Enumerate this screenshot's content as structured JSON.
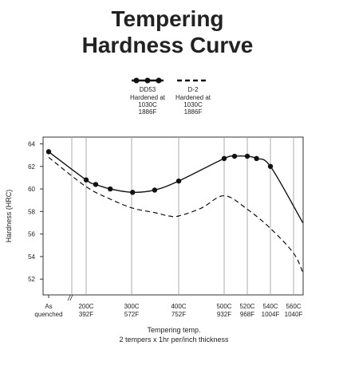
{
  "chart_data": {
    "type": "line",
    "title_lines": [
      "Tempering",
      "Hardness Curve"
    ],
    "xlabel_lines": [
      "Tempering temp.",
      "2 tempers x 1hr per/inch thickness"
    ],
    "ylabel": "Hardness (HRC)",
    "xticks": [
      {
        "value": 25,
        "label": "As quenched"
      },
      {
        "value": 200,
        "label": "200C 392F"
      },
      {
        "value": 300,
        "label": "300C 572F"
      },
      {
        "value": 400,
        "label": "400C 752F"
      },
      {
        "value": 500,
        "label": "500C 932F"
      },
      {
        "value": 520,
        "label": "520C 968F"
      },
      {
        "value": 540,
        "label": "540C 1004F"
      },
      {
        "value": 560,
        "label": "560C 1040F"
      }
    ],
    "ylim": [
      50.6,
      64.6
    ],
    "yticks": [
      52,
      54,
      56,
      58,
      60,
      62,
      64
    ],
    "grid": true,
    "series": [
      {
        "name": "DD53",
        "legend_lines": [
          "Hardened at",
          "1030C",
          "1886F"
        ],
        "color": "#111111",
        "style": "solid",
        "markers": true,
        "x": [
          25,
          200,
          221,
          253,
          302,
          349,
          400,
          500,
          509,
          520,
          528,
          540,
          568
        ],
        "values": [
          63.3,
          60.8,
          60.4,
          60.0,
          59.7,
          59.9,
          60.7,
          62.7,
          62.9,
          62.9,
          62.7,
          62.0,
          57.0
        ]
      },
      {
        "name": "D-2",
        "legend_lines": [
          "Hardened at",
          "1030C",
          "1886F"
        ],
        "color": "#111111",
        "style": "dashed",
        "markers": false,
        "x": [
          25,
          200,
          253,
          302,
          349,
          380,
          400,
          450,
          500,
          520,
          540,
          560,
          568
        ],
        "values": [
          62.8,
          60.2,
          59.1,
          58.3,
          57.9,
          57.6,
          57.6,
          58.3,
          59.4,
          58.2,
          56.5,
          54.3,
          52.6
        ]
      }
    ]
  }
}
